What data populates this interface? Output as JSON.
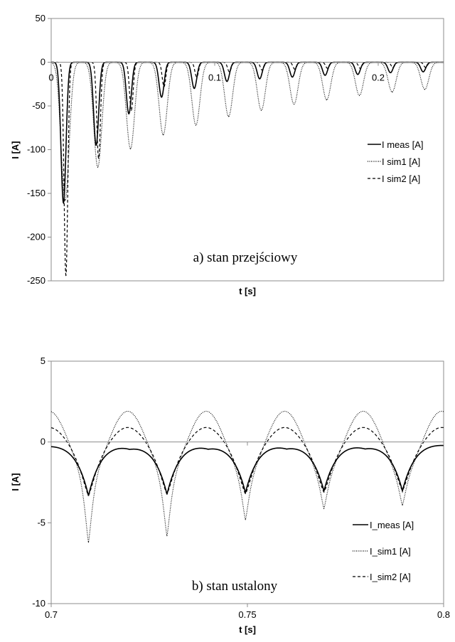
{
  "chart_data": [
    {
      "type": "line",
      "xlabel": "t [s]",
      "ylabel": "I [A]",
      "xlim": [
        0,
        0.24
      ],
      "ylim": [
        -250,
        50
      ],
      "yticks": [
        50,
        0,
        -50,
        -100,
        -150,
        -200,
        -250
      ],
      "yticklabels": [
        "50",
        "0",
        "-50",
        "-100",
        "-150",
        "-200",
        "-250"
      ],
      "xticks": [
        0,
        0.1,
        0.2
      ],
      "xticklabels": [
        "0",
        "0.1",
        "0.2"
      ],
      "annotation": "a) stan przejściowy",
      "legend": [
        "I meas [A]",
        "I sim1 [A]",
        "I sim2 [A]"
      ],
      "legend_placement": "right",
      "grid": false,
      "series_style": [
        "solid",
        "dotted",
        "dashed"
      ],
      "pulse_period": 0.02,
      "series": [
        {
          "name": "I meas [A]",
          "t_peak": [
            0.0075,
            0.0275,
            0.0475,
            0.0675,
            0.0875,
            0.1075,
            0.1275,
            0.1475,
            0.1675,
            0.1875,
            0.2075,
            0.2275
          ],
          "i_peak": [
            -161,
            -95,
            -59,
            -40,
            -30,
            -22,
            -19,
            -17,
            -15,
            -14,
            -12,
            -11
          ]
        },
        {
          "name": "I sim1 [A]",
          "t_peak": [
            0.0085,
            0.0285,
            0.0485,
            0.0685,
            0.0885,
            0.1085,
            0.1285,
            0.1485,
            0.1685,
            0.1885,
            0.2085,
            0.2285
          ],
          "i_peak": [
            -158,
            -120,
            -99,
            -83,
            -72,
            -62,
            -55,
            -48,
            -43,
            -38,
            -34,
            -31
          ]
        },
        {
          "name": "I sim2 [A]",
          "t_peak": [
            0.009,
            0.029,
            0.049,
            0.069,
            0.089,
            0.109,
            0.129,
            0.149,
            0.169,
            0.189,
            0.209,
            0.229
          ],
          "i_peak": [
            -244,
            -110,
            -55,
            -28,
            -17,
            -11,
            -9,
            -8,
            -7,
            -7,
            -6,
            -6
          ]
        }
      ]
    },
    {
      "type": "line",
      "xlabel": "t [s]",
      "ylabel": "I [A]",
      "xlim": [
        0.7,
        0.8
      ],
      "ylim": [
        -10,
        5
      ],
      "yticks": [
        5,
        0,
        -5,
        -10
      ],
      "yticklabels": [
        "5",
        "0",
        "-5",
        "-10"
      ],
      "xticks": [
        0.7,
        0.75,
        0.8
      ],
      "xticklabels": [
        "0.7",
        "0.75",
        "0.8"
      ],
      "annotation": "b) stan ustalony",
      "legend": [
        "I_meas [A]",
        "I_sim1 [A]",
        "I_sim2 [A]"
      ],
      "legend_placement": "bottom-right",
      "grid": false,
      "series_style": [
        "solid",
        "dotted",
        "dashed"
      ],
      "pulse_period": 0.02,
      "series": [
        {
          "name": "I_meas [A]",
          "t_peak": [
            0.7095,
            0.7295,
            0.7495,
            0.7695,
            0.7895
          ],
          "i_peak": [
            -3.3,
            -3.2,
            -3.1,
            -3.0,
            -3.0
          ],
          "baseline": 0.3
        },
        {
          "name": "I_sim1 [A]",
          "t_peak": [
            0.7095,
            0.7295,
            0.7495,
            0.7695,
            0.7895
          ],
          "i_peak": [
            -6.2,
            -5.8,
            -4.8,
            -4.1,
            -3.9
          ],
          "i_max": 1.9
        },
        {
          "name": "I_sim2 [A]",
          "t_peak": [
            0.7095,
            0.7295,
            0.7495,
            0.7695,
            0.7895
          ],
          "i_peak": [
            -3.3,
            -3.2,
            -3.2,
            -3.1,
            -3.0
          ],
          "i_max": 0.9
        }
      ]
    }
  ]
}
